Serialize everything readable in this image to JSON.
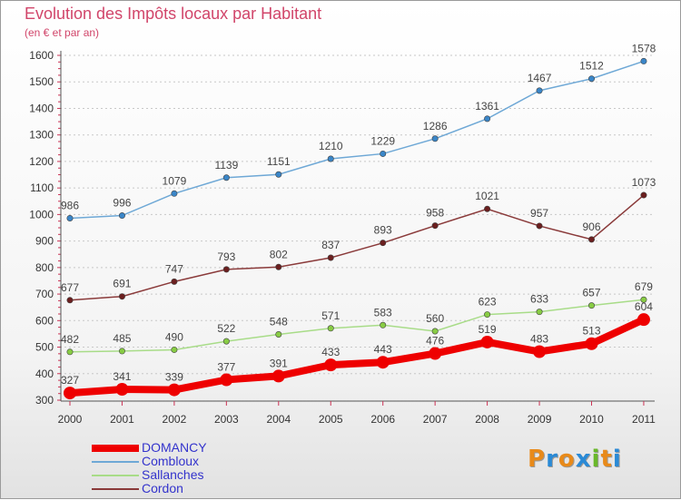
{
  "chart_data": {
    "type": "line",
    "title": "Evolution des Impôts locaux par Habitant",
    "subtitle": "(en € et par an)",
    "categories": [
      "2000",
      "2001",
      "2002",
      "2003",
      "2004",
      "2005",
      "2006",
      "2007",
      "2008",
      "2009",
      "2010",
      "2011"
    ],
    "ylim": [
      300,
      1600
    ],
    "yticks": [
      300,
      400,
      500,
      600,
      700,
      800,
      900,
      1000,
      1100,
      1200,
      1300,
      1400,
      1500,
      1600
    ],
    "grid": "horizontal dashed",
    "legend_position": "bottom-left",
    "series": [
      {
        "name": "DOMANCY",
        "color": "#ee0000",
        "emphasis": true,
        "values": [
          327,
          341,
          339,
          377,
          391,
          433,
          443,
          476,
          519,
          483,
          513,
          604
        ]
      },
      {
        "name": "Combloux",
        "color": "#6ea8d6",
        "marker": "#3a86c8",
        "values": [
          986,
          996,
          1079,
          1139,
          1151,
          1210,
          1229,
          1286,
          1361,
          1467,
          1512,
          1578
        ]
      },
      {
        "name": "Sallanches",
        "color": "#a8dc88",
        "marker": "#88cc44",
        "values": [
          482,
          485,
          490,
          522,
          548,
          571,
          583,
          560,
          623,
          633,
          657,
          679
        ]
      },
      {
        "name": "Cordon",
        "color": "#8a3a3a",
        "marker": "#6b1f1f",
        "values": [
          677,
          691,
          747,
          793,
          802,
          837,
          893,
          958,
          1021,
          957,
          906,
          1073
        ]
      }
    ]
  },
  "logo": {
    "letters": [
      "P",
      "r",
      "o",
      "x",
      "i",
      "t",
      "i"
    ],
    "colors": [
      "#e88a1a",
      "#2a8ad6",
      "#e88a1a",
      "#2a8ad6",
      "#6ab82a",
      "#e88a1a",
      "#2a8ad6"
    ]
  }
}
